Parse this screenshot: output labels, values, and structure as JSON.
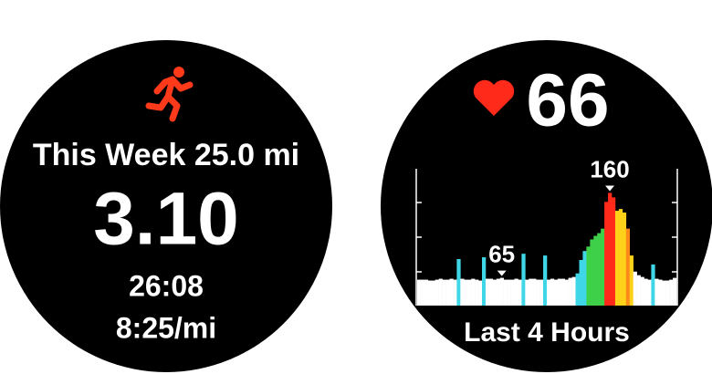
{
  "activity_face": {
    "week_distance": "This Week 25.0 mi",
    "distance": "3.10",
    "duration": "26:08",
    "pace": "8:25/mi"
  },
  "heart_rate_face": {
    "current": "66",
    "period": "Last 4 Hours",
    "chart": {
      "type": "bar",
      "peak_label": 160,
      "latest_label": 65,
      "ylim": [
        34,
        187
      ],
      "values": [
        63,
        63,
        63,
        62,
        62,
        63,
        64,
        63,
        63,
        64,
        63,
        86,
        64,
        63,
        63,
        64,
        63,
        62,
        88,
        64,
        64,
        63,
        64,
        65,
        63,
        63,
        63,
        64,
        63,
        92,
        63,
        64,
        64,
        63,
        63,
        90,
        63,
        64,
        63,
        64,
        64,
        63,
        65,
        66,
        70,
        85,
        95,
        100,
        108,
        112,
        115,
        120,
        150,
        160,
        155,
        140,
        142,
        138,
        120,
        90,
        72,
        68,
        66,
        64,
        63,
        80,
        64,
        63,
        62,
        62,
        63,
        65
      ],
      "colors": [
        "#fff",
        "#fff",
        "#fff",
        "#fff",
        "#fff",
        "#fff",
        "#fff",
        "#fff",
        "#fff",
        "#fff",
        "#fff",
        "#3fd7e8",
        "#fff",
        "#fff",
        "#fff",
        "#fff",
        "#fff",
        "#fff",
        "#3fd7e8",
        "#fff",
        "#fff",
        "#fff",
        "#fff",
        "#fff",
        "#fff",
        "#fff",
        "#fff",
        "#fff",
        "#fff",
        "#3fd7e8",
        "#fff",
        "#fff",
        "#fff",
        "#fff",
        "#fff",
        "#3fd7e8",
        "#fff",
        "#fff",
        "#fff",
        "#fff",
        "#fff",
        "#fff",
        "#fff",
        "#fff",
        "#3fd7e8",
        "#3fd7e8",
        "#3fd7e8",
        "#3fd04a",
        "#3fd04a",
        "#3fd04a",
        "#3fd04a",
        "#3fd04a",
        "#ff2a1a",
        "#ff2a1a",
        "#ff2a1a",
        "#ffd21a",
        "#ffd21a",
        "#ffd21a",
        "#ff8a1a",
        "#ffd21a",
        "#fff",
        "#fff",
        "#fff",
        "#fff",
        "#fff",
        "#3fd7e8",
        "#fff",
        "#fff",
        "#fff",
        "#fff",
        "#fff",
        "#fff"
      ]
    }
  }
}
